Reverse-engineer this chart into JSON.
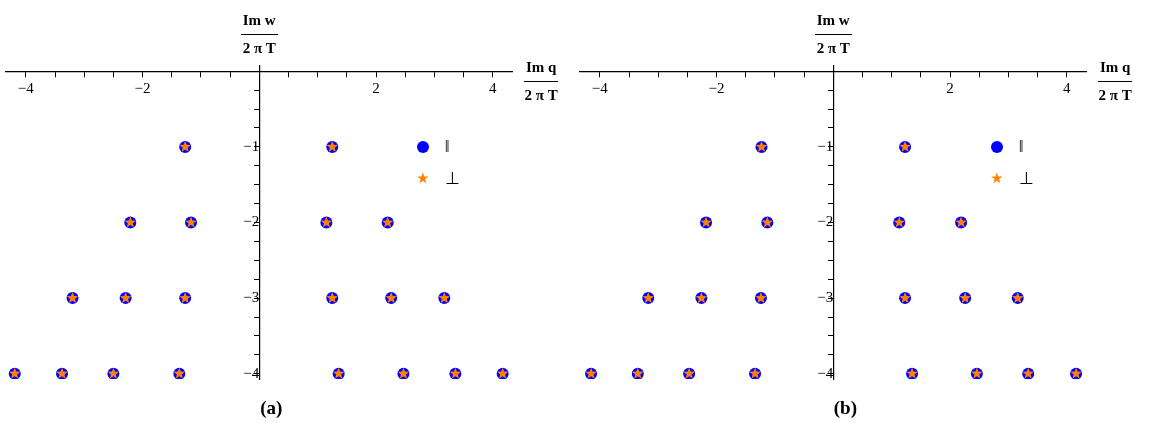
{
  "chart_data": [
    {
      "type": "scatter",
      "title": "(a)",
      "xlabel": "Im q\n2 π T",
      "ylabel": "Im w\n2 π T",
      "xlim": [
        -4.34,
        4.33
      ],
      "ylim": [
        -4.07,
        0.07
      ],
      "xticks": [
        -4,
        {
          "value": -3.5,
          "label": null
        },
        {
          "value": -3,
          "label": null
        },
        {
          "value": -2.5,
          "label": null
        },
        -2,
        {
          "value": -1.5,
          "label": null
        },
        {
          "value": -1,
          "label": null
        },
        {
          "value": -0.5,
          "label": null
        },
        {
          "value": 0.5,
          "label": null
        },
        {
          "value": 1,
          "label": null
        },
        {
          "value": 1.5,
          "label": null
        },
        2,
        {
          "value": 2.5,
          "label": null
        },
        {
          "value": 3,
          "label": null
        },
        {
          "value": 3.5,
          "label": null
        },
        4
      ],
      "yticks": [
        {
          "value": -0.25,
          "label": null
        },
        {
          "value": -0.5,
          "label": null
        },
        {
          "value": -0.75,
          "label": null
        },
        -1,
        {
          "value": -1.25,
          "label": null
        },
        {
          "value": -1.5,
          "label": null
        },
        {
          "value": -1.75,
          "label": null
        },
        -2,
        {
          "value": -2.25,
          "label": null
        },
        {
          "value": -2.5,
          "label": null
        },
        {
          "value": -2.75,
          "label": null
        },
        -3,
        {
          "value": -3.25,
          "label": null
        },
        {
          "value": -3.5,
          "label": null
        },
        {
          "value": -3.75,
          "label": null
        },
        -4
      ],
      "legend": "top right",
      "series": [
        {
          "name": "‖",
          "color": "#0000ff",
          "marker": "circle",
          "x": [
            -1.27,
            1.25,
            -2.21,
            -1.17,
            1.15,
            2.2,
            -3.2,
            -2.29,
            -1.27,
            1.25,
            2.26,
            3.17,
            -4.19,
            -3.38,
            -2.5,
            -1.37,
            1.36,
            2.47,
            3.36,
            4.17
          ],
          "values": [
            -1,
            -1,
            -2,
            -2,
            -2,
            -2,
            -3,
            -3,
            -3,
            -3,
            -3,
            -3,
            -4,
            -4,
            -4,
            -4,
            -4,
            -4,
            -4,
            -4
          ]
        },
        {
          "name": "⊥",
          "color": "#ff8000",
          "marker": "star",
          "x": [
            -1.27,
            1.25,
            -2.21,
            -1.17,
            1.15,
            2.2,
            -3.2,
            -2.29,
            -1.27,
            1.25,
            2.26,
            3.17,
            -4.19,
            -3.38,
            -2.5,
            -1.37,
            1.36,
            2.47,
            3.36,
            4.17
          ],
          "values": [
            -1,
            -1,
            -2,
            -2,
            -2,
            -2,
            -3,
            -3,
            -3,
            -3,
            -3,
            -3,
            -4,
            -4,
            -4,
            -4,
            -4,
            -4,
            -4,
            -4
          ]
        }
      ]
    },
    {
      "type": "scatter",
      "title": "(b)",
      "xlabel": "Im q\n2 π T",
      "ylabel": "Im w\n2 π T",
      "xlim": [
        -4.34,
        4.33
      ],
      "ylim": [
        -4.07,
        0.07
      ],
      "xticks": [
        -4,
        {
          "value": -3.5,
          "label": null
        },
        {
          "value": -3,
          "label": null
        },
        {
          "value": -2.5,
          "label": null
        },
        -2,
        {
          "value": -1.5,
          "label": null
        },
        {
          "value": -1,
          "label": null
        },
        {
          "value": -0.5,
          "label": null
        },
        {
          "value": 0.5,
          "label": null
        },
        {
          "value": 1,
          "label": null
        },
        {
          "value": 1.5,
          "label": null
        },
        2,
        {
          "value": 2.5,
          "label": null
        },
        {
          "value": 3,
          "label": null
        },
        {
          "value": 3.5,
          "label": null
        },
        4
      ],
      "yticks": [
        {
          "value": -0.25,
          "label": null
        },
        {
          "value": -0.5,
          "label": null
        },
        {
          "value": -0.75,
          "label": null
        },
        -1,
        {
          "value": -1.25,
          "label": null
        },
        {
          "value": -1.5,
          "label": null
        },
        {
          "value": -1.75,
          "label": null
        },
        -2,
        {
          "value": -2.25,
          "label": null
        },
        {
          "value": -2.5,
          "label": null
        },
        {
          "value": -2.75,
          "label": null
        },
        -3,
        {
          "value": -3.25,
          "label": null
        },
        {
          "value": -3.5,
          "label": null
        },
        {
          "value": -3.75,
          "label": null
        },
        -4
      ],
      "legend": "top right",
      "series": [
        {
          "name": "‖",
          "color": "#0000ff",
          "marker": "circle",
          "x": [
            -1.23,
            1.23,
            -2.18,
            -1.13,
            1.13,
            2.19,
            -3.17,
            -2.26,
            -1.24,
            1.23,
            2.26,
            3.16,
            -4.15,
            -3.35,
            -2.47,
            -1.34,
            1.35,
            2.46,
            3.34,
            4.16
          ],
          "values": [
            -1,
            -1,
            -2,
            -2,
            -2,
            -2,
            -3,
            -3,
            -3,
            -3,
            -3,
            -3,
            -4,
            -4,
            -4,
            -4,
            -4,
            -4,
            -4,
            -4
          ]
        },
        {
          "name": "⊥",
          "color": "#ff8000",
          "marker": "star",
          "x": [
            -1.23,
            1.23,
            -2.18,
            -1.13,
            1.13,
            2.19,
            -3.17,
            -2.26,
            -1.24,
            1.23,
            2.26,
            3.16,
            -4.15,
            -3.35,
            -2.47,
            -1.34,
            1.35,
            2.46,
            3.34,
            4.16
          ],
          "values": [
            -1,
            -1,
            -2,
            -2,
            -2,
            -2,
            -3,
            -3,
            -3,
            -3,
            -3,
            -3,
            -4,
            -4,
            -4,
            -4,
            -4,
            -4,
            -4,
            -4
          ]
        }
      ]
    }
  ]
}
